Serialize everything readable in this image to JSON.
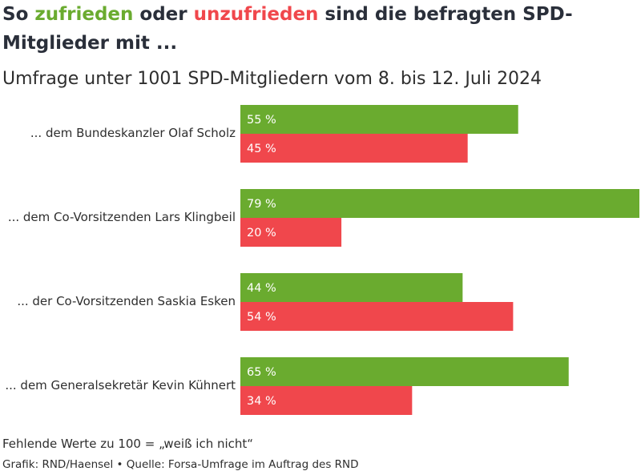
{
  "title": {
    "part1": "So ",
    "positive_word": "zufrieden",
    "part2": " oder ",
    "negative_word": "unzufrieden",
    "part3": " sind die befragten SPD-Mitglieder mit ..."
  },
  "subtitle": "Umfrage unter 1001 SPD-Mitgliedern vom 8. bis 12. Juli 2024",
  "footnote": "Fehlende Werte zu 100 = „weiß ich nicht“",
  "credit": "Grafik: RND/Haensel • Quelle: Forsa-Umfrage im Auftrag des RND",
  "colors": {
    "positive": "#6aab2f",
    "negative": "#f0474c",
    "bar_text": "#ffffff"
  },
  "chart_data": {
    "type": "bar",
    "orientation": "horizontal",
    "value_suffix": " %",
    "categories": [
      "... dem Bundeskanzler Olaf Scholz",
      "... dem Co-Vorsitzenden Lars Klingbeil",
      "... der Co-Vorsitzenden Saskia Esken",
      "... dem Generalsekretär Kevin Kühnert"
    ],
    "series": [
      {
        "name": "zufrieden",
        "color": "#6aab2f",
        "values": [
          55,
          79,
          44,
          65
        ]
      },
      {
        "name": "unzufrieden",
        "color": "#f0474c",
        "values": [
          45,
          20,
          54,
          34
        ]
      }
    ],
    "xlim": [
      0,
      80
    ],
    "grid": false,
    "legend": "none"
  }
}
